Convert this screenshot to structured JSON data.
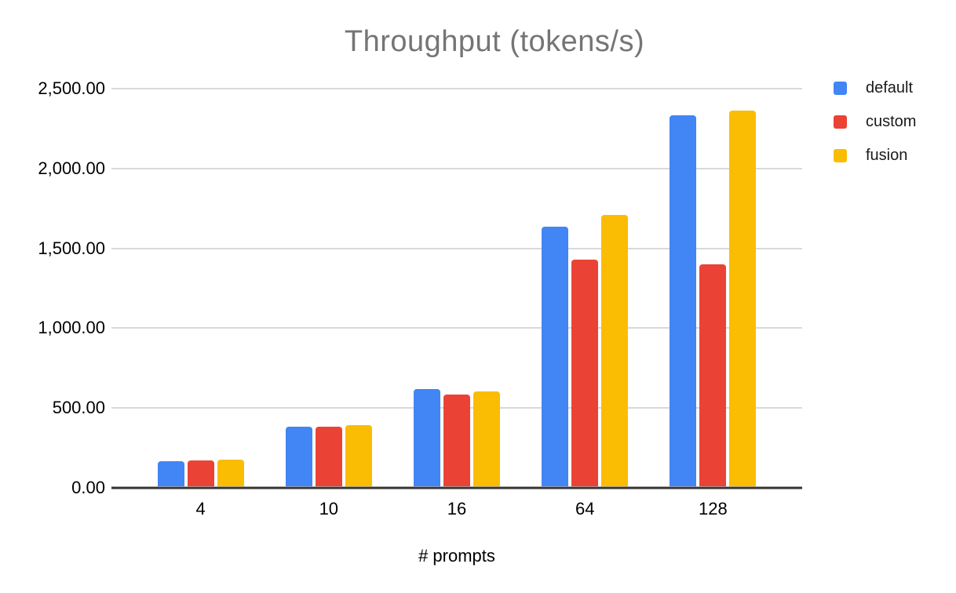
{
  "chart_data": {
    "type": "bar",
    "title": "Throughput (tokens/s)",
    "xlabel": "# prompts",
    "ylabel": "",
    "categories": [
      "4",
      "10",
      "16",
      "64",
      "128"
    ],
    "series": [
      {
        "name": "default",
        "color": "#4285F4",
        "values": [
          158,
          377,
          613,
          1630,
          2333
        ]
      },
      {
        "name": "custom",
        "color": "#EA4335",
        "values": [
          163,
          373,
          578,
          1424,
          1398
        ]
      },
      {
        "name": "fusion",
        "color": "#FBBC04",
        "values": [
          170,
          383,
          598,
          1704,
          2363
        ]
      }
    ],
    "ylim": [
      0,
      2500
    ],
    "ytick_step": 500,
    "yticks": [
      {
        "value": 0,
        "label": "0.00"
      },
      {
        "value": 500,
        "label": "500.00"
      },
      {
        "value": 1000,
        "label": "1,000.00"
      },
      {
        "value": 1500,
        "label": "1,500.00"
      },
      {
        "value": 2000,
        "label": "2,000.00"
      },
      {
        "value": 2500,
        "label": "2,500.00"
      }
    ],
    "grid": true,
    "legend_position": "right-top"
  },
  "colors": {
    "title_text": "#757575",
    "axis_text": "#000000",
    "gridline": "#d9d9d9",
    "axis_line": "#333333",
    "background": "#ffffff"
  }
}
